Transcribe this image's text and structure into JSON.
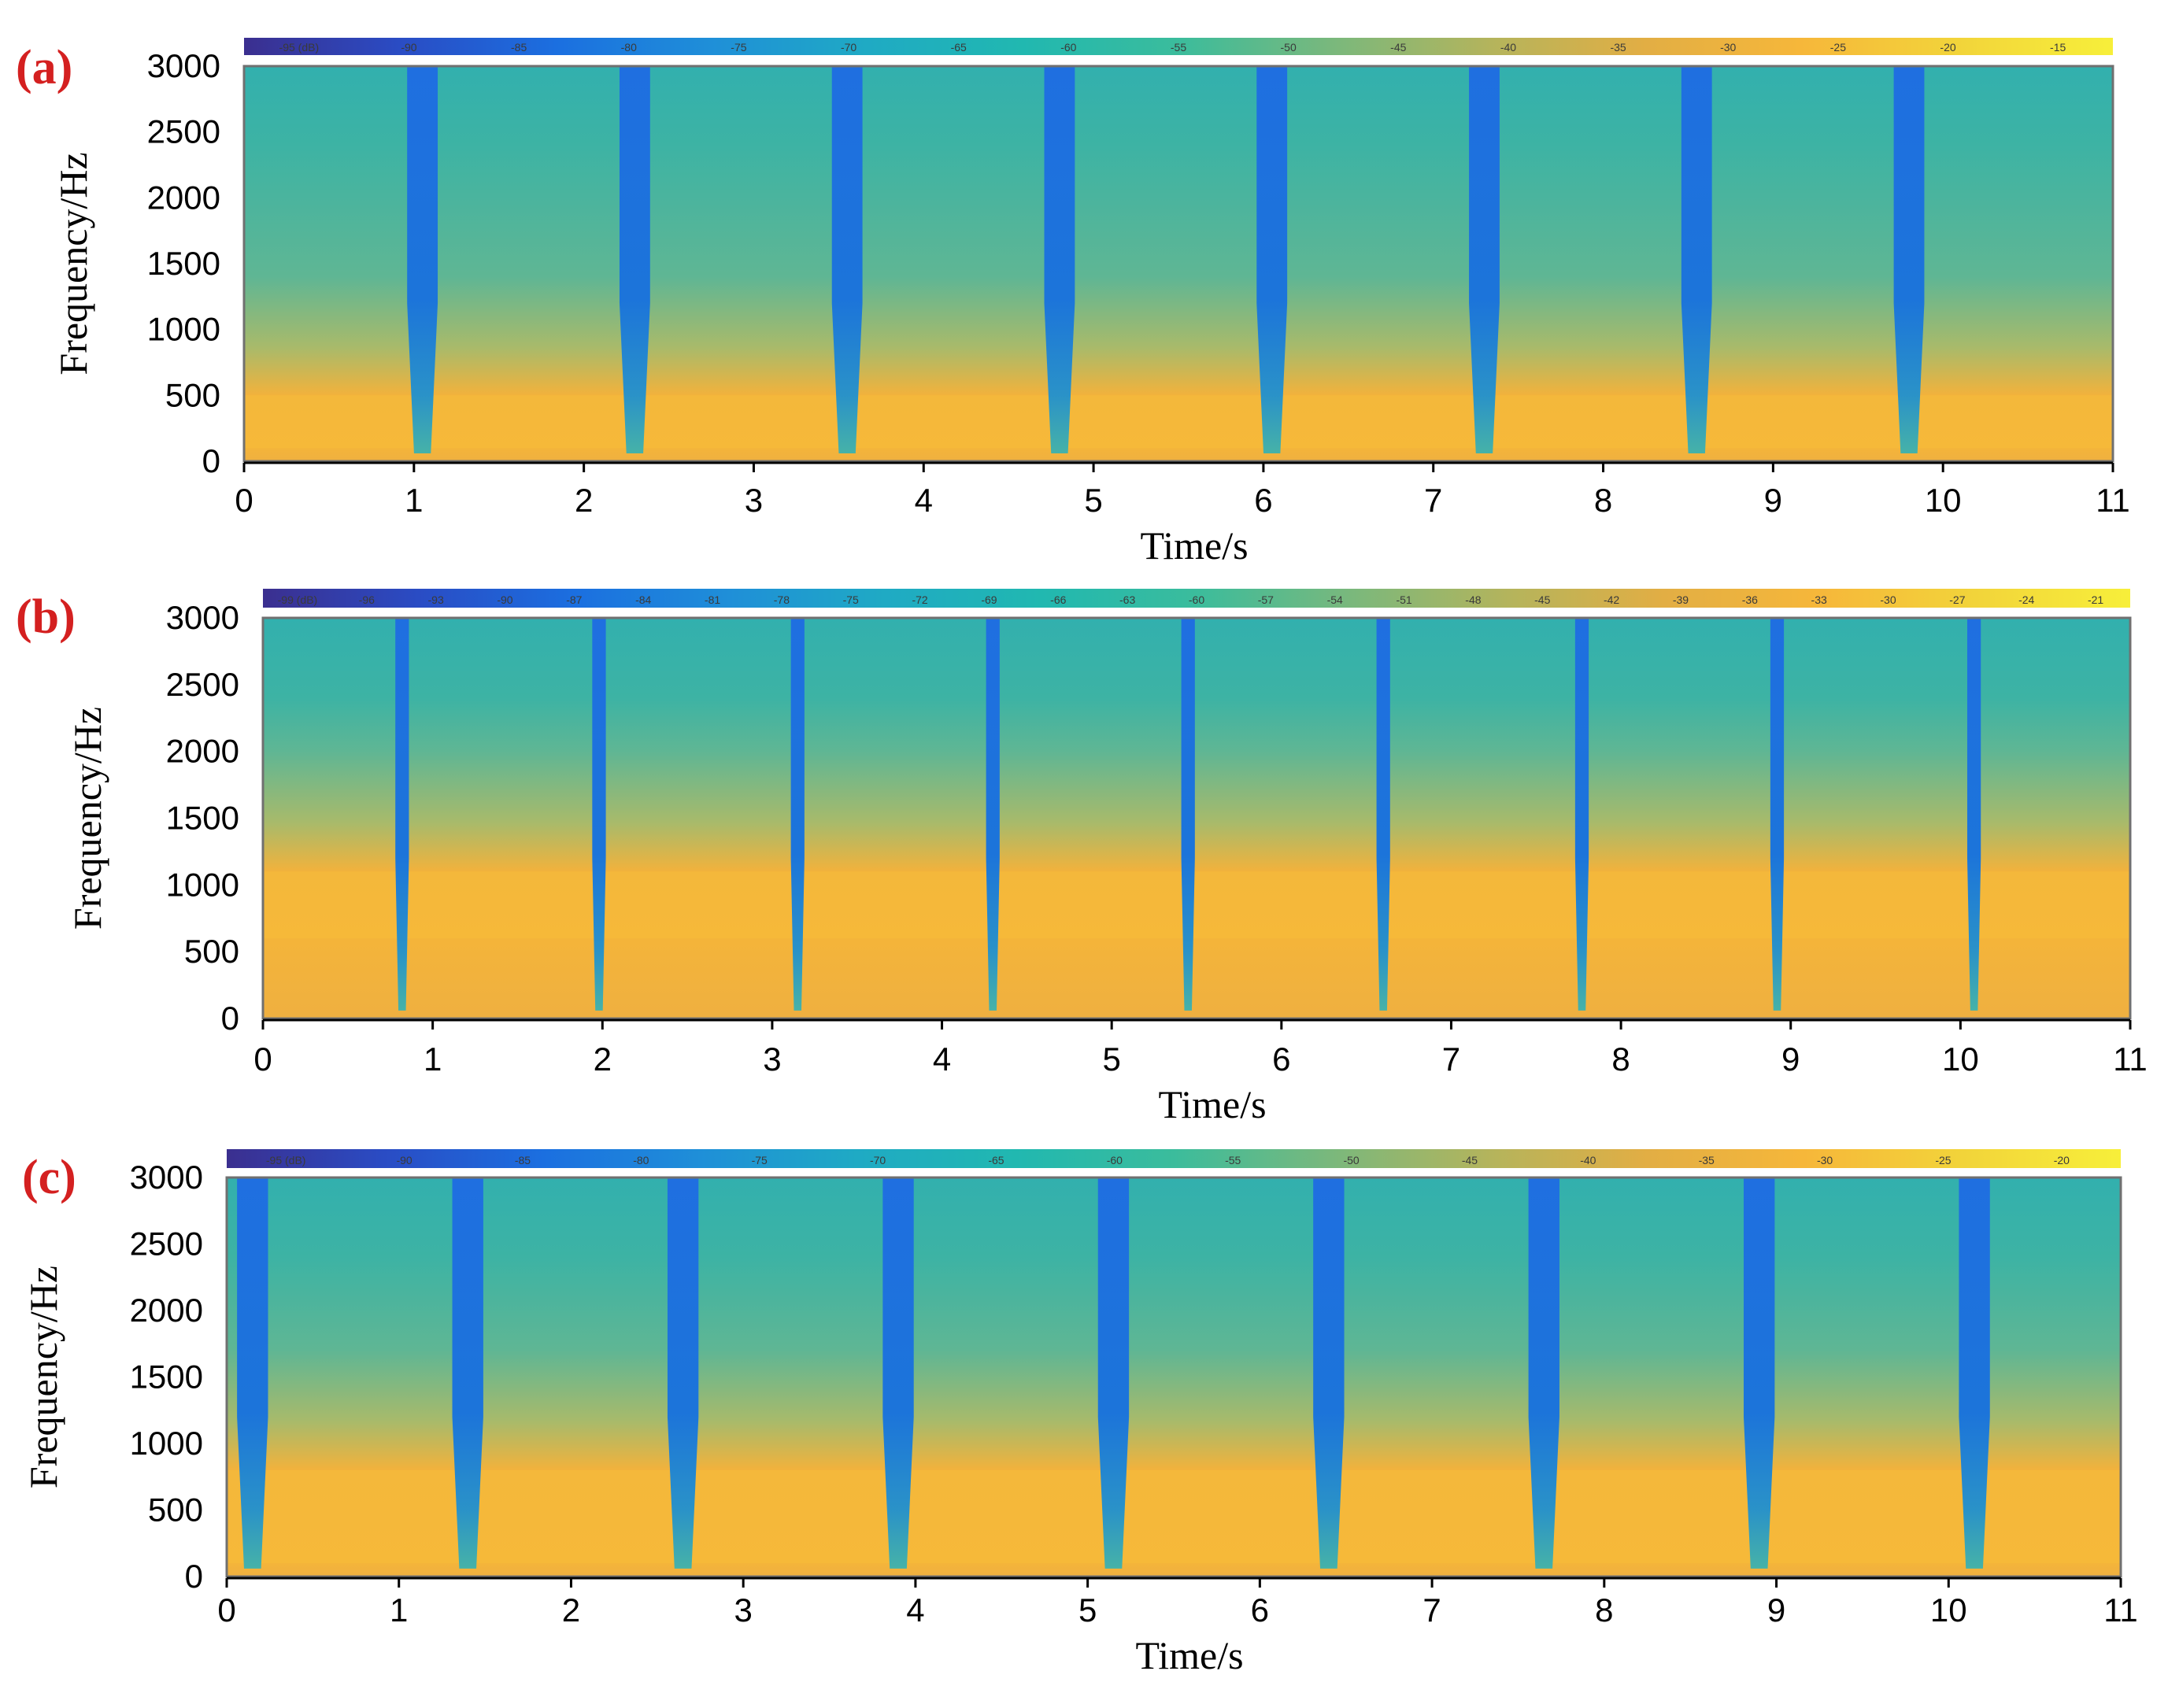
{
  "figure": {
    "panels": [
      {
        "label": "(a)",
        "chart_data": {
          "type": "heatmap",
          "xlabel": "Time/s",
          "ylabel": "Frequency/Hz",
          "xlim": [
            0,
            11
          ],
          "ylim": [
            0,
            3000
          ],
          "x_ticks": [
            "0",
            "1",
            "2",
            "3",
            "4",
            "5",
            "6",
            "7",
            "8",
            "9",
            "10",
            "11"
          ],
          "y_ticks": [
            "0",
            "500",
            "1000",
            "1500",
            "2000",
            "2500",
            "3000"
          ],
          "colorbar_ticks": [
            "-95 (dB)",
            "-90",
            "-85",
            "-80",
            "-75",
            "-70",
            "-65",
            "-60",
            "-55",
            "-50",
            "-45",
            "-40",
            "-35",
            "-30",
            "-25",
            "-20",
            "-15"
          ],
          "colorbar_range_db": [
            -95,
            -15
          ],
          "low_dips_time_s": [
            1.05,
            2.3,
            3.55,
            4.8,
            6.05,
            7.3,
            8.55,
            9.8
          ],
          "dip_width_s": 0.18,
          "bright_band_hz": [
            100,
            500
          ]
        }
      },
      {
        "label": "(b)",
        "chart_data": {
          "type": "heatmap",
          "xlabel": "Time/s",
          "ylabel": "Frequency/Hz",
          "xlim": [
            0,
            11
          ],
          "ylim": [
            0,
            3000
          ],
          "x_ticks": [
            "0",
            "1",
            "2",
            "3",
            "4",
            "5",
            "6",
            "7",
            "8",
            "9",
            "10",
            "11"
          ],
          "y_ticks": [
            "0",
            "500",
            "1000",
            "1500",
            "2000",
            "2500",
            "3000"
          ],
          "colorbar_ticks": [
            "-99 (dB)",
            "-96",
            "-93",
            "-90",
            "-87",
            "-84",
            "-81",
            "-78",
            "-75",
            "-72",
            "-69",
            "-66",
            "-63",
            "-60",
            "-57",
            "-54",
            "-51",
            "-48",
            "-45",
            "-42",
            "-39",
            "-36",
            "-33",
            "-30",
            "-27",
            "-24",
            "-21"
          ],
          "colorbar_range_db": [
            -99,
            -21
          ],
          "low_dips_time_s": [
            0.82,
            1.98,
            3.15,
            4.3,
            5.45,
            6.6,
            7.77,
            8.92,
            10.08
          ],
          "dip_width_s": 0.08,
          "bright_band_hz": [
            600,
            1100
          ]
        }
      },
      {
        "label": "(c)",
        "chart_data": {
          "type": "heatmap",
          "xlabel": "Time/s",
          "ylabel": "Frequency/Hz",
          "xlim": [
            0,
            11
          ],
          "ylim": [
            0,
            3000
          ],
          "x_ticks": [
            "0",
            "1",
            "2",
            "3",
            "4",
            "5",
            "6",
            "7",
            "8",
            "9",
            "10",
            "11"
          ],
          "y_ticks": [
            "0",
            "500",
            "1000",
            "1500",
            "2000",
            "2500",
            "3000"
          ],
          "colorbar_ticks": [
            "-95 (dB)",
            "-90",
            "-85",
            "-80",
            "-75",
            "-70",
            "-65",
            "-60",
            "-55",
            "-50",
            "-45",
            "-40",
            "-35",
            "-30",
            "-25",
            "-20"
          ],
          "colorbar_range_db": [
            -95,
            -20
          ],
          "low_dips_time_s": [
            0.15,
            1.4,
            2.65,
            3.9,
            5.15,
            6.4,
            7.65,
            8.9,
            10.15
          ],
          "dip_width_s": 0.18,
          "bright_band_hz": [
            100,
            800
          ]
        }
      }
    ]
  }
}
